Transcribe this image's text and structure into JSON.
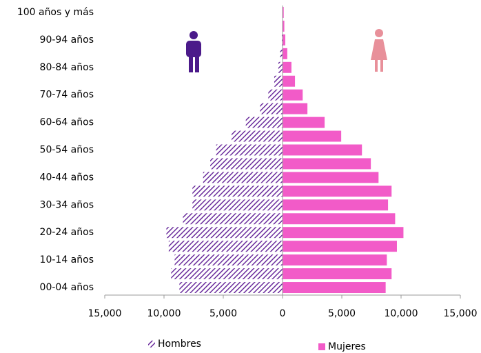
{
  "chart_data": {
    "type": "bar",
    "categories": [
      "00-04 años",
      null,
      "10-14 años",
      null,
      "20-24 años",
      null,
      "30-34 años",
      null,
      "40-44 años",
      null,
      "50-54 años",
      null,
      "60-64 años",
      null,
      "70-74 años",
      null,
      "80-84 años",
      null,
      "90-94 años",
      null,
      "100 años y más"
    ],
    "series": [
      {
        "name": "Hombres",
        "color": "#6a2c9c",
        "values": [
          -8700,
          -9400,
          -9100,
          -9600,
          -9800,
          -8400,
          -7600,
          -7600,
          -6700,
          -6100,
          -5600,
          -4300,
          -3100,
          -1900,
          -1200,
          -700,
          -350,
          -200,
          -60,
          -30,
          -20
        ]
      },
      {
        "name": "Mujeres",
        "color": "#f25bc8",
        "values": [
          8700,
          9200,
          8800,
          9650,
          10200,
          9500,
          8900,
          9200,
          8100,
          7450,
          6700,
          4950,
          3550,
          2100,
          1700,
          1050,
          750,
          400,
          230,
          150,
          100
        ]
      }
    ],
    "xlim": [
      -15000,
      15000
    ],
    "xticks": [
      {
        "value": -15000,
        "label": "15,000"
      },
      {
        "value": -10000,
        "label": "10,000"
      },
      {
        "value": -5000,
        "label": "5,000"
      },
      0,
      {
        "value": 5000,
        "label": "5,000"
      },
      {
        "value": 10000,
        "label": "10,000"
      },
      {
        "value": 15000,
        "label": "15,000"
      }
    ]
  }
}
